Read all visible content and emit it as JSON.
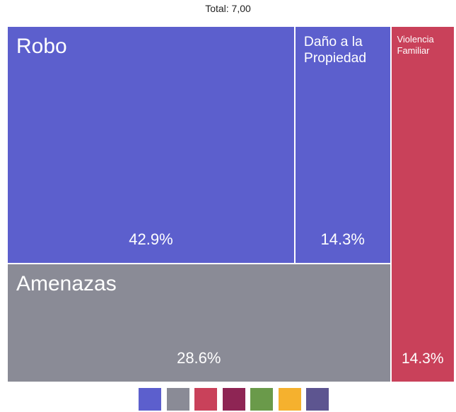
{
  "chart_data": {
    "type": "treemap",
    "title": "Total: 7,00",
    "categories": [
      "Robo",
      "Daño a la Propiedad",
      "Amenazas",
      "Violencia Familiar"
    ],
    "values": [
      42.9,
      14.3,
      28.6,
      14.3
    ],
    "value_labels": [
      "42.9%",
      "14.3%",
      "28.6%",
      "14.3%"
    ],
    "colors": [
      "#5c5fcd",
      "#5c5fcd",
      "#8a8b96",
      "#c9415a"
    ],
    "legend_colors": [
      "#5c5fcd",
      "#8a8b96",
      "#c9415a",
      "#8e2554",
      "#6a9a4a",
      "#f5b12e",
      "#5d5590"
    ]
  }
}
